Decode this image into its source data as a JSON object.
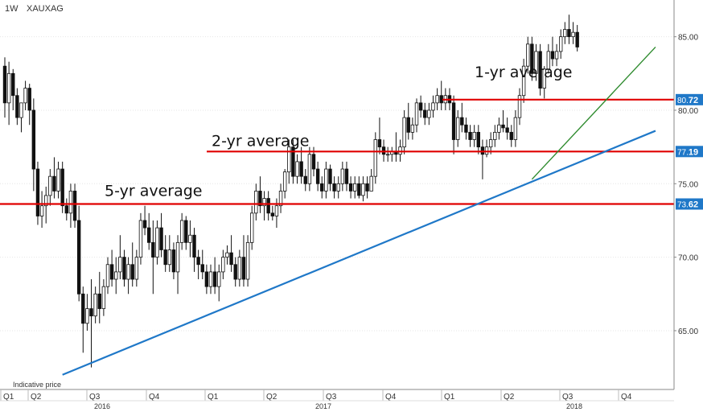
{
  "header": {
    "timeframe": "1W",
    "symbol": "XAUXAG"
  },
  "footnote": "Indicative price",
  "colors": {
    "candle": "#111111",
    "average_line": "#e00000",
    "trend_blue": "#1f78c8",
    "trend_green": "#2e8b2e",
    "badge": "#1f78c8"
  },
  "chart_data": {
    "type": "candlestick",
    "title": "",
    "ylim": [
      61.0,
      87.5
    ],
    "y_ticks": [
      "85.00",
      "80.00",
      "75.00",
      "70.00",
      "65.00"
    ],
    "y_tick_values": [
      85,
      80,
      75,
      70,
      65
    ],
    "x_quarters": [
      "Q1",
      "Q2",
      "Q3",
      "Q4",
      "Q1",
      "Q2",
      "Q3",
      "Q4",
      "Q1",
      "Q2",
      "Q3",
      "Q4"
    ],
    "x_years": [
      "2016",
      "2017",
      "2018"
    ],
    "averages": [
      {
        "label": "5-yr average",
        "value": 73.62,
        "badge_int": "73.",
        "badge_dec": "62"
      },
      {
        "label": "2-yr average",
        "value": 77.19,
        "badge_int": "77.",
        "badge_dec": "19"
      },
      {
        "label": "1-yr average",
        "value": 80.72,
        "badge_int": "80.",
        "badge_dec": "72"
      }
    ],
    "trendlines": [
      {
        "color": "blue",
        "from_week": 14,
        "from_value": 62.0,
        "to_week": 158,
        "to_value": 78.6
      },
      {
        "color": "green",
        "from_week": 128,
        "from_value": 75.3,
        "to_week": 158,
        "to_value": 84.3
      }
    ],
    "candles": [
      [
        83.0,
        83.6,
        79.5,
        80.5
      ],
      [
        80.5,
        83.3,
        79.0,
        82.5
      ],
      [
        82.5,
        82.8,
        80.0,
        81.0
      ],
      [
        81.0,
        81.5,
        79.0,
        79.5
      ],
      [
        79.5,
        80.5,
        78.5,
        80.5
      ],
      [
        80.5,
        82.0,
        80.0,
        81.5
      ],
      [
        81.5,
        81.8,
        79.0,
        80.0
      ],
      [
        80.0,
        80.8,
        74.5,
        76.0
      ],
      [
        76.0,
        76.5,
        72.2,
        72.8
      ],
      [
        72.8,
        74.5,
        72.0,
        73.5
      ],
      [
        73.5,
        74.8,
        72.3,
        74.2
      ],
      [
        74.2,
        76.0,
        73.5,
        75.5
      ],
      [
        75.5,
        76.8,
        74.0,
        74.5
      ],
      [
        74.5,
        76.5,
        74.0,
        76.0
      ],
      [
        76.0,
        76.5,
        73.0,
        73.5
      ],
      [
        73.5,
        74.0,
        72.5,
        73.0
      ],
      [
        73.0,
        75.0,
        72.0,
        74.5
      ],
      [
        74.5,
        75.0,
        72.0,
        72.5
      ],
      [
        72.5,
        73.5,
        67.0,
        67.5
      ],
      [
        67.5,
        68.0,
        63.5,
        65.5
      ],
      [
        65.5,
        67.5,
        65.0,
        66.5
      ],
      [
        66.5,
        68.5,
        62.5,
        66.0
      ],
      [
        66.0,
        68.0,
        65.5,
        67.5
      ],
      [
        67.5,
        69.0,
        65.5,
        66.5
      ],
      [
        66.5,
        68.5,
        66.0,
        68.0
      ],
      [
        68.0,
        70.0,
        67.5,
        69.5
      ],
      [
        69.5,
        70.5,
        68.0,
        68.5
      ],
      [
        68.5,
        70.0,
        67.5,
        69.0
      ],
      [
        69.0,
        71.5,
        68.5,
        70.0
      ],
      [
        70.0,
        70.5,
        68.0,
        68.5
      ],
      [
        68.5,
        70.0,
        67.5,
        69.5
      ],
      [
        69.5,
        71.0,
        68.0,
        68.5
      ],
      [
        68.5,
        70.5,
        68.0,
        70.0
      ],
      [
        70.0,
        73.0,
        69.5,
        72.5
      ],
      [
        72.5,
        73.5,
        71.5,
        72.0
      ],
      [
        72.0,
        73.0,
        70.5,
        71.0
      ],
      [
        71.0,
        72.5,
        67.5,
        70.0
      ],
      [
        70.0,
        72.5,
        69.5,
        72.0
      ],
      [
        72.0,
        73.0,
        70.0,
        70.5
      ],
      [
        70.5,
        71.5,
        69.0,
        69.5
      ],
      [
        69.5,
        71.5,
        69.0,
        70.5
      ],
      [
        70.5,
        71.0,
        68.5,
        69.0
      ],
      [
        69.0,
        71.5,
        67.5,
        71.0
      ],
      [
        71.0,
        73.0,
        70.5,
        72.5
      ],
      [
        72.5,
        72.8,
        70.5,
        71.0
      ],
      [
        71.0,
        72.5,
        70.0,
        71.5
      ],
      [
        71.5,
        72.0,
        69.0,
        70.0
      ],
      [
        70.0,
        70.5,
        68.5,
        69.5
      ],
      [
        69.5,
        70.5,
        68.5,
        69.0
      ],
      [
        69.0,
        69.5,
        67.5,
        68.0
      ],
      [
        68.0,
        69.5,
        67.5,
        69.0
      ],
      [
        69.0,
        70.0,
        67.5,
        68.0
      ],
      [
        68.0,
        69.5,
        67.0,
        69.0
      ],
      [
        69.0,
        70.5,
        68.5,
        70.0
      ],
      [
        70.0,
        70.8,
        69.5,
        70.3
      ],
      [
        70.3,
        71.5,
        69.0,
        69.5
      ],
      [
        69.5,
        70.0,
        68.0,
        68.5
      ],
      [
        68.5,
        70.5,
        68.0,
        70.0
      ],
      [
        70.0,
        71.5,
        68.0,
        68.5
      ],
      [
        68.5,
        71.5,
        68.0,
        71.0
      ],
      [
        71.0,
        73.5,
        70.5,
        73.0
      ],
      [
        73.0,
        75.0,
        72.5,
        74.5
      ],
      [
        74.5,
        75.5,
        73.0,
        73.5
      ],
      [
        73.5,
        74.5,
        72.5,
        74.0
      ],
      [
        74.0,
        74.5,
        72.5,
        73.0
      ],
      [
        73.0,
        73.5,
        72.5,
        72.8
      ],
      [
        72.8,
        74.0,
        72.0,
        73.5
      ],
      [
        73.5,
        75.0,
        73.0,
        74.5
      ],
      [
        74.5,
        76.0,
        74.0,
        75.8
      ],
      [
        75.8,
        78.0,
        75.0,
        77.5
      ],
      [
        77.5,
        78.0,
        75.0,
        75.5
      ],
      [
        75.5,
        77.0,
        75.0,
        76.5
      ],
      [
        76.5,
        77.5,
        75.0,
        75.5
      ],
      [
        75.5,
        76.0,
        74.5,
        75.0
      ],
      [
        75.0,
        77.5,
        74.5,
        77.0
      ],
      [
        77.0,
        77.5,
        75.5,
        76.0
      ],
      [
        76.0,
        76.5,
        74.5,
        75.0
      ],
      [
        75.0,
        75.5,
        74.0,
        74.5
      ],
      [
        74.5,
        76.5,
        74.0,
        76.0
      ],
      [
        76.0,
        76.3,
        74.5,
        75.0
      ],
      [
        75.0,
        75.5,
        74.0,
        74.5
      ],
      [
        74.5,
        75.5,
        74.0,
        75.0
      ],
      [
        75.0,
        76.5,
        74.5,
        76.0
      ],
      [
        76.0,
        76.5,
        74.5,
        75.0
      ],
      [
        75.0,
        75.5,
        74.0,
        74.5
      ],
      [
        74.5,
        75.5,
        74.0,
        75.0
      ],
      [
        75.0,
        75.5,
        74.0,
        74.2
      ],
      [
        74.2,
        75.5,
        73.8,
        75.0
      ],
      [
        75.0,
        75.5,
        74.0,
        74.5
      ],
      [
        74.5,
        76.0,
        74.5,
        75.5
      ],
      [
        75.5,
        78.5,
        75.0,
        78.0
      ],
      [
        78.0,
        79.5,
        77.0,
        77.5
      ],
      [
        77.5,
        78.0,
        76.5,
        77.0
      ],
      [
        77.0,
        77.5,
        76.5,
        77.0
      ],
      [
        77.0,
        77.5,
        76.5,
        77.2
      ],
      [
        77.2,
        78.5,
        76.5,
        77.0
      ],
      [
        77.0,
        78.0,
        76.5,
        77.5
      ],
      [
        77.5,
        80.0,
        77.0,
        79.5
      ],
      [
        79.5,
        80.5,
        78.0,
        78.5
      ],
      [
        78.5,
        79.5,
        78.0,
        79.0
      ],
      [
        79.0,
        80.8,
        78.5,
        80.5
      ],
      [
        80.5,
        81.0,
        79.5,
        80.0
      ],
      [
        80.0,
        80.5,
        79.0,
        79.5
      ],
      [
        79.5,
        80.5,
        79.0,
        80.0
      ],
      [
        80.0,
        81.0,
        79.5,
        80.5
      ],
      [
        80.5,
        81.5,
        80.0,
        81.0
      ],
      [
        81.0,
        82.0,
        80.0,
        80.5
      ],
      [
        80.5,
        81.5,
        80.0,
        81.0
      ],
      [
        81.0,
        81.5,
        80.0,
        80.5
      ],
      [
        80.5,
        81.0,
        77.0,
        78.0
      ],
      [
        78.0,
        80.0,
        77.5,
        79.5
      ],
      [
        79.5,
        80.5,
        78.5,
        79.0
      ],
      [
        79.0,
        79.5,
        78.0,
        78.5
      ],
      [
        78.5,
        79.0,
        77.5,
        78.0
      ],
      [
        78.0,
        79.0,
        77.5,
        78.5
      ],
      [
        78.5,
        79.0,
        77.0,
        77.5
      ],
      [
        77.5,
        78.0,
        75.3,
        77.0
      ],
      [
        77.0,
        78.0,
        76.8,
        77.5
      ],
      [
        77.5,
        78.5,
        77.0,
        78.0
      ],
      [
        78.0,
        79.0,
        77.5,
        78.5
      ],
      [
        78.5,
        79.5,
        78.0,
        79.0
      ],
      [
        79.0,
        80.0,
        78.5,
        78.8
      ],
      [
        78.8,
        79.5,
        78.0,
        78.5
      ],
      [
        78.5,
        79.0,
        77.5,
        78.0
      ],
      [
        78.0,
        80.0,
        77.5,
        79.5
      ],
      [
        79.5,
        81.5,
        79.0,
        81.0
      ],
      [
        81.0,
        83.5,
        80.5,
        83.0
      ],
      [
        83.0,
        85.0,
        82.5,
        84.5
      ],
      [
        84.5,
        85.0,
        82.0,
        82.5
      ],
      [
        82.5,
        84.5,
        82.0,
        84.0
      ],
      [
        84.0,
        84.5,
        81.0,
        81.5
      ],
      [
        81.5,
        83.0,
        80.8,
        82.8
      ],
      [
        82.8,
        84.5,
        82.5,
        84.0
      ],
      [
        84.0,
        85.0,
        83.0,
        83.5
      ],
      [
        83.5,
        84.5,
        83.0,
        84.0
      ],
      [
        84.0,
        85.5,
        83.5,
        85.0
      ],
      [
        85.0,
        86.0,
        84.5,
        85.5
      ],
      [
        85.5,
        86.5,
        84.5,
        85.0
      ],
      [
        85.0,
        86.0,
        84.5,
        85.3
      ],
      [
        85.3,
        85.8,
        84.0,
        84.3
      ]
    ]
  }
}
